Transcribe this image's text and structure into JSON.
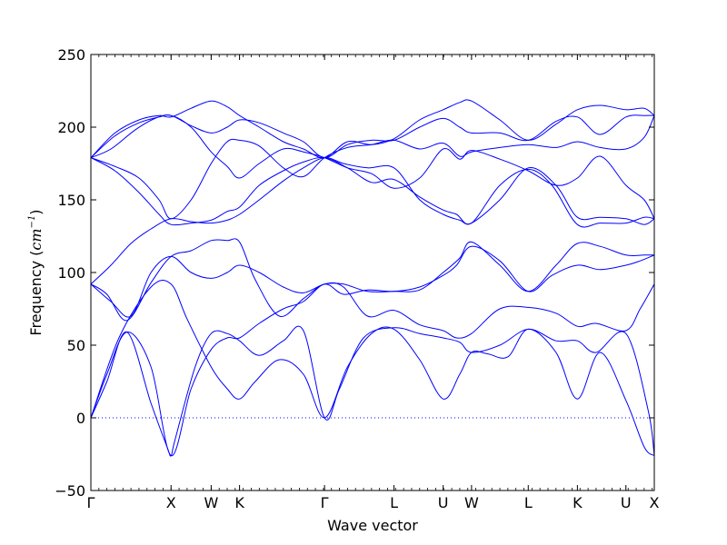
{
  "chart_data": {
    "type": "line",
    "title": "",
    "xlabel": "Wave vector",
    "ylabel_prefix": "Frequency (",
    "ylabel_unit": "cm",
    "ylabel_exp": "−1",
    "ylabel_suffix": ")",
    "ylim": [
      -50,
      250
    ],
    "yticks": [
      -50,
      0,
      50,
      100,
      150,
      200,
      250
    ],
    "ytick_labels": [
      "−50",
      "0",
      "50",
      "100",
      "150",
      "200",
      "250"
    ],
    "grid": false,
    "line_color": "#0000ff",
    "zero_line_color": "#0000ff",
    "high_symmetry_points": [
      {
        "label": "Γ",
        "x": 0.0
      },
      {
        "label": "X",
        "x": 1.0
      },
      {
        "label": "W",
        "x": 1.5
      },
      {
        "label": "K",
        "x": 1.854
      },
      {
        "label": "Γ",
        "x": 2.914
      },
      {
        "label": "L",
        "x": 3.78
      },
      {
        "label": "U",
        "x": 4.393
      },
      {
        "label": "W",
        "x": 4.747
      },
      {
        "label": "L",
        "x": 5.454
      },
      {
        "label": "K",
        "x": 6.067
      },
      {
        "label": "U",
        "x": 6.672
      },
      {
        "label": "X",
        "x": 7.026
      }
    ],
    "xlim": [
      0,
      7.026
    ],
    "series": [
      {
        "x": [
          0,
          0.2,
          0.45,
          0.75,
          1.0,
          1.25,
          1.5,
          1.7,
          1.854,
          2.1,
          2.4,
          2.65,
          2.914,
          3.15,
          3.45,
          3.78,
          4.1,
          4.393,
          4.56,
          4.747,
          5.1,
          5.454,
          5.75,
          6.067,
          6.35,
          6.672,
          6.85,
          7.026
        ],
        "y": [
          0,
          30,
          59,
          35,
          -26,
          20,
          47,
          55,
          55,
          65,
          75,
          80,
          92,
          85,
          88,
          87,
          90,
          98,
          105,
          118,
          108,
          87,
          98,
          105,
          102,
          105,
          108,
          112
        ]
      },
      {
        "x": [
          0,
          0.2,
          0.45,
          0.75,
          0.95,
          1.0,
          1.05,
          1.3,
          1.5,
          1.7,
          1.854,
          2.1,
          2.4,
          2.65,
          2.914,
          3.1,
          3.4,
          3.78,
          4.1,
          4.393,
          4.6,
          4.747,
          5.1,
          5.454,
          5.8,
          6.067,
          6.3,
          6.672,
          6.95,
          7.026
        ],
        "y": [
          0,
          25,
          59,
          10,
          -20,
          -26,
          -15,
          35,
          58,
          58,
          53,
          43,
          53,
          60,
          0,
          20,
          55,
          62,
          58,
          55,
          52,
          45,
          50,
          61,
          53,
          53,
          45,
          58,
          5,
          -26
        ]
      },
      {
        "x": [
          0,
          0.35,
          0.75,
          1.0,
          1.2,
          1.5,
          1.7,
          1.854,
          2.05,
          2.35,
          2.65,
          2.914,
          3.2,
          3.5,
          3.78,
          4.1,
          4.393,
          4.6,
          4.747,
          4.95,
          5.2,
          5.454,
          5.8,
          6.067,
          6.35,
          6.672,
          6.9,
          7.026
        ],
        "y": [
          0,
          55,
          90,
          92,
          68,
          35,
          20,
          13,
          25,
          40,
          30,
          0,
          35,
          58,
          61,
          40,
          13,
          30,
          45,
          44,
          42,
          61,
          45,
          13,
          45,
          12,
          -20,
          -26
        ]
      },
      {
        "x": [
          0,
          0.2,
          0.45,
          0.75,
          1.0,
          1.25,
          1.5,
          1.7,
          1.854,
          2.05,
          2.35,
          2.65,
          2.914,
          3.15,
          3.45,
          3.78,
          4.1,
          4.393,
          4.56,
          4.747,
          5.1,
          5.454,
          5.8,
          6.067,
          6.3,
          6.672,
          6.85,
          7.026
        ],
        "y": [
          92,
          85,
          67,
          93,
          111,
          115,
          122,
          122,
          121,
          95,
          70,
          82,
          92,
          90,
          70,
          74,
          64,
          60,
          55,
          58,
          75,
          76,
          72,
          63,
          65,
          60,
          75,
          92
        ]
      },
      {
        "x": [
          0,
          0.25,
          0.5,
          0.75,
          1.0,
          1.25,
          1.5,
          1.7,
          1.854,
          2.1,
          2.4,
          2.65,
          2.914,
          3.15,
          3.45,
          3.78,
          4.1,
          4.393,
          4.6,
          4.747,
          5.1,
          5.454,
          5.8,
          6.067,
          6.35,
          6.672,
          6.9,
          7.026
        ],
        "y": [
          92,
          80,
          70,
          100,
          111,
          100,
          96,
          100,
          105,
          100,
          90,
          86,
          92,
          92,
          87,
          87,
          88,
          100,
          110,
          121,
          105,
          87,
          105,
          120,
          118,
          112,
          112,
          112
        ]
      },
      {
        "x": [
          0,
          0.25,
          0.5,
          0.75,
          1.0,
          1.25,
          1.5,
          1.7,
          1.854,
          2.1,
          2.4,
          2.65,
          2.914,
          3.15,
          3.45,
          3.78,
          4.1,
          4.393,
          4.6,
          4.747,
          5.1,
          5.454,
          5.8,
          6.067,
          6.35,
          6.672,
          6.9,
          7.026
        ],
        "y": [
          92,
          105,
          120,
          130,
          137,
          135,
          134,
          136,
          140,
          150,
          163,
          172,
          179,
          175,
          172,
          172,
          150,
          140,
          136,
          134,
          150,
          172,
          160,
          138,
          138,
          137,
          133,
          137
        ]
      },
      {
        "x": [
          0,
          0.3,
          0.6,
          0.85,
          1.0,
          1.25,
          1.5,
          1.7,
          1.854,
          2.1,
          2.4,
          2.65,
          2.914,
          3.2,
          3.5,
          3.78,
          4.1,
          4.393,
          4.56,
          4.747,
          5.1,
          5.454,
          5.75,
          6.067,
          6.35,
          6.672,
          6.9,
          7.026
        ],
        "y": [
          179,
          170,
          155,
          140,
          133,
          134,
          136,
          142,
          145,
          160,
          170,
          176,
          179,
          172,
          162,
          164,
          152,
          143,
          140,
          134,
          160,
          171,
          160,
          133,
          134,
          134,
          138,
          137
        ]
      },
      {
        "x": [
          0,
          0.25,
          0.55,
          0.8,
          1.0,
          1.25,
          1.5,
          1.7,
          1.854,
          2.1,
          2.4,
          2.65,
          2.914,
          3.2,
          3.5,
          3.78,
          4.1,
          4.393,
          4.6,
          4.747,
          5.1,
          5.454,
          5.8,
          6.067,
          6.35,
          6.672,
          6.9,
          7.026
        ],
        "y": [
          179,
          185,
          198,
          206,
          208,
          200,
          183,
          173,
          165,
          175,
          185,
          183,
          179,
          172,
          168,
          158,
          165,
          185,
          178,
          184,
          178,
          170,
          160,
          165,
          180,
          160,
          150,
          137
        ]
      },
      {
        "x": [
          0,
          0.3,
          0.6,
          0.85,
          1.0,
          1.25,
          1.5,
          1.7,
          1.854,
          2.1,
          2.4,
          2.65,
          2.914,
          3.2,
          3.5,
          3.78,
          4.1,
          4.393,
          4.6,
          4.747,
          5.1,
          5.454,
          5.8,
          6.067,
          6.35,
          6.672,
          6.9,
          7.026
        ],
        "y": [
          179,
          173,
          165,
          150,
          137,
          150,
          175,
          190,
          191,
          187,
          172,
          166,
          179,
          186,
          188,
          191,
          185,
          189,
          180,
          183,
          186,
          188,
          186,
          190,
          186,
          185,
          193,
          208
        ]
      },
      {
        "x": [
          0,
          0.3,
          0.6,
          0.85,
          1.0,
          1.25,
          1.5,
          1.7,
          1.854,
          2.1,
          2.4,
          2.65,
          2.914,
          3.2,
          3.5,
          3.78,
          4.1,
          4.393,
          4.6,
          4.747,
          5.1,
          5.454,
          5.8,
          6.067,
          6.35,
          6.672,
          6.9,
          7.026
        ],
        "y": [
          179,
          194,
          203,
          207,
          208,
          201,
          196,
          200,
          205,
          203,
          196,
          190,
          179,
          188,
          191,
          191,
          200,
          206,
          200,
          196,
          196,
          191,
          204,
          207,
          195,
          207,
          208,
          208
        ]
      },
      {
        "x": [
          0,
          0.3,
          0.6,
          0.85,
          1.0,
          1.25,
          1.5,
          1.7,
          1.854,
          2.1,
          2.4,
          2.65,
          2.914,
          3.2,
          3.5,
          3.78,
          4.1,
          4.393,
          4.6,
          4.747,
          5.1,
          5.454,
          5.8,
          6.067,
          6.35,
          6.672,
          6.9,
          7.026
        ],
        "y": [
          179,
          196,
          205,
          208,
          207,
          213,
          218,
          214,
          208,
          200,
          190,
          185,
          179,
          190,
          188,
          192,
          205,
          212,
          217,
          218,
          205,
          191,
          202,
          212,
          215,
          212,
          213,
          208
        ]
      }
    ]
  }
}
